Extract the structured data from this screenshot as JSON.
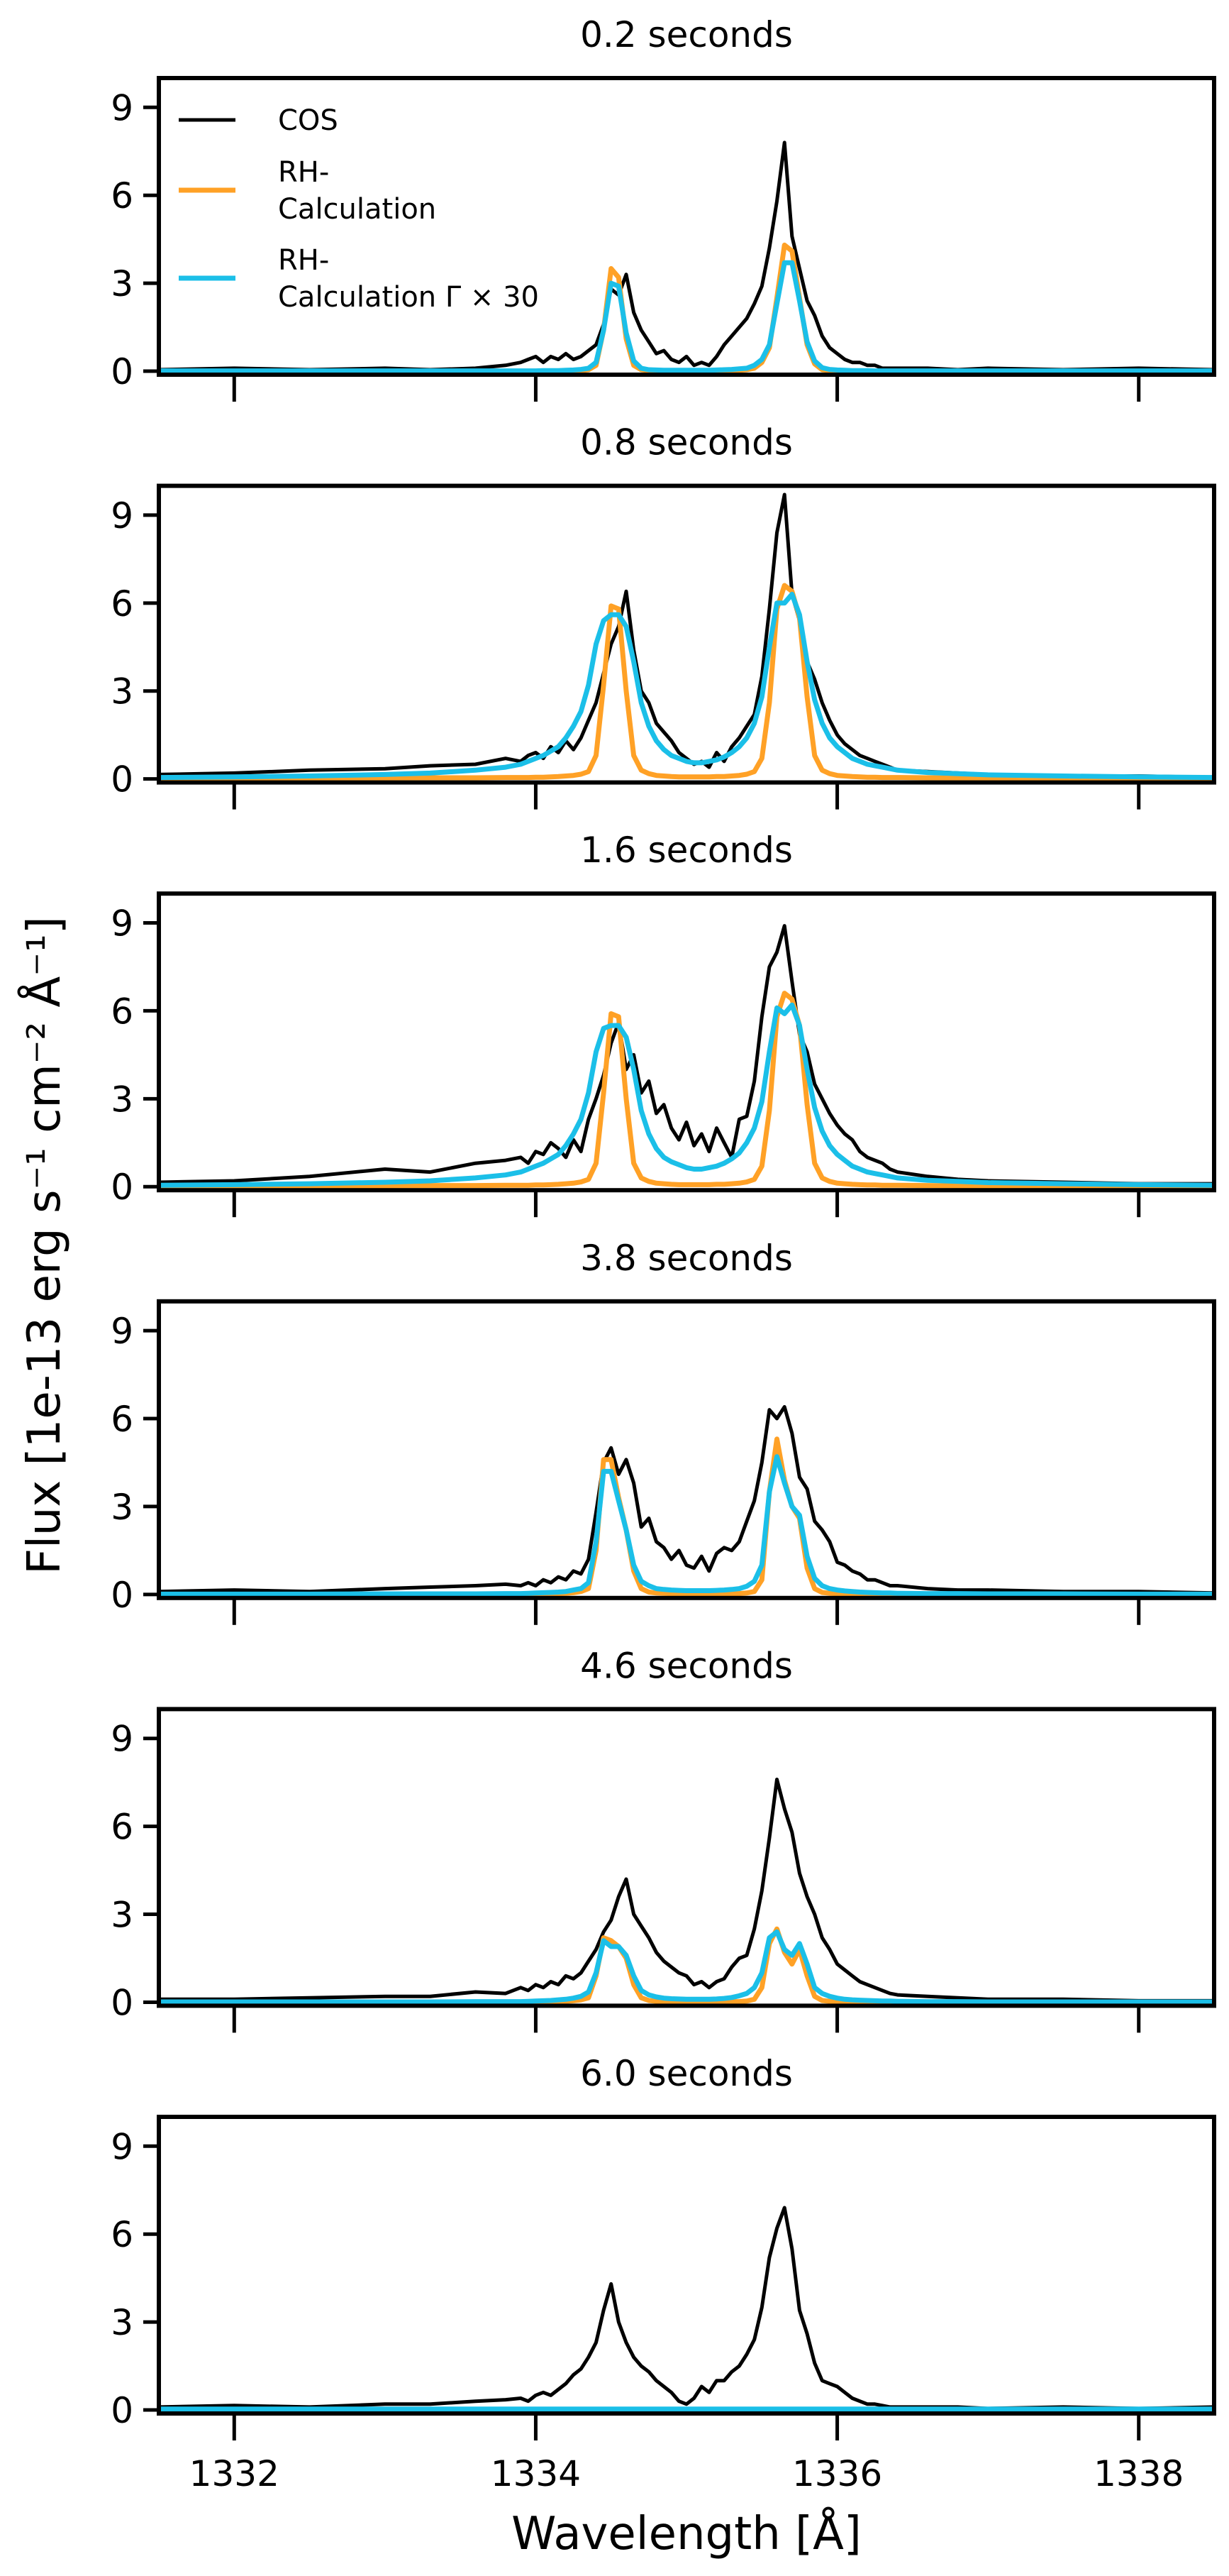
{
  "chart_data": {
    "type": "line",
    "xlabel": "Wavelength [Å]",
    "ylabel": "Flux [1e-13 erg s⁻¹ cm⁻² Å⁻¹]",
    "xlim": [
      1331.5,
      1338.5
    ],
    "ylim": [
      -0.12,
      10.0
    ],
    "xticks": [
      1332,
      1334,
      1336,
      1338
    ],
    "xtick_labels": [
      "1332",
      "1334",
      "1336",
      "1338"
    ],
    "yticks": [
      0,
      3,
      6,
      9
    ],
    "ytick_labels": [
      "0",
      "3",
      "6",
      "9"
    ],
    "grid": false,
    "legend": {
      "placement": "top-left",
      "entries": [
        {
          "key": "cos",
          "label": "COS",
          "color": "#000000"
        },
        {
          "key": "rh",
          "label": "RH-\nCalculation",
          "color": "#FFA126"
        },
        {
          "key": "rh30",
          "label": "RH-\nCalculation Γ × 30",
          "color": "#1BBFE8"
        }
      ]
    },
    "x": [
      1331.5,
      1332.0,
      1332.5,
      1333.0,
      1333.3,
      1333.6,
      1333.8,
      1333.9,
      1333.95,
      1334.0,
      1334.05,
      1334.1,
      1334.15,
      1334.2,
      1334.25,
      1334.3,
      1334.35,
      1334.4,
      1334.45,
      1334.5,
      1334.55,
      1334.6,
      1334.65,
      1334.7,
      1334.75,
      1334.8,
      1334.85,
      1334.9,
      1334.95,
      1335.0,
      1335.05,
      1335.1,
      1335.15,
      1335.2,
      1335.25,
      1335.3,
      1335.35,
      1335.4,
      1335.45,
      1335.5,
      1335.55,
      1335.6,
      1335.65,
      1335.7,
      1335.75,
      1335.8,
      1335.85,
      1335.9,
      1335.95,
      1336.0,
      1336.05,
      1336.1,
      1336.15,
      1336.2,
      1336.25,
      1336.3,
      1336.35,
      1336.4,
      1336.6,
      1336.8,
      1337.0,
      1337.5,
      1338.0,
      1338.5
    ],
    "panels": [
      {
        "title": "0.2 seconds",
        "cos": [
          0.05,
          0.1,
          0.05,
          0.1,
          0.05,
          0.1,
          0.2,
          0.3,
          0.4,
          0.5,
          0.3,
          0.5,
          0.4,
          0.6,
          0.4,
          0.5,
          0.7,
          0.9,
          1.6,
          2.8,
          2.6,
          3.3,
          2.0,
          1.4,
          1.0,
          0.6,
          0.7,
          0.4,
          0.3,
          0.5,
          0.2,
          0.3,
          0.2,
          0.5,
          0.9,
          1.2,
          1.5,
          1.8,
          2.3,
          2.9,
          4.2,
          5.8,
          7.8,
          4.6,
          3.5,
          2.4,
          1.9,
          1.2,
          0.8,
          0.6,
          0.4,
          0.3,
          0.3,
          0.2,
          0.2,
          0.1,
          0.1,
          0.1,
          0.1,
          0.05,
          0.1,
          0.05,
          0.1,
          0.05
        ],
        "rh": [
          0,
          0,
          0,
          0,
          0,
          0,
          0,
          0,
          0,
          0,
          0,
          0,
          0,
          0,
          0,
          0.02,
          0.05,
          0.2,
          1.4,
          3.5,
          3.2,
          1.1,
          0.2,
          0.05,
          0.02,
          0,
          0,
          0,
          0,
          0,
          0,
          0,
          0,
          0,
          0,
          0.02,
          0.03,
          0.05,
          0.1,
          0.3,
          0.8,
          2.5,
          4.3,
          4.1,
          2.5,
          0.9,
          0.25,
          0.05,
          0.02,
          0,
          0,
          0,
          0,
          0,
          0,
          0,
          0,
          0,
          0,
          0,
          0,
          0,
          0,
          0
        ],
        "rh30": [
          0.01,
          0.01,
          0.01,
          0.01,
          0.01,
          0.01,
          0.01,
          0.01,
          0.01,
          0.01,
          0.02,
          0.02,
          0.02,
          0.03,
          0.04,
          0.06,
          0.1,
          0.3,
          1.4,
          3.0,
          2.9,
          1.3,
          0.35,
          0.1,
          0.05,
          0.04,
          0.03,
          0.03,
          0.03,
          0.03,
          0.03,
          0.03,
          0.03,
          0.04,
          0.05,
          0.06,
          0.08,
          0.1,
          0.2,
          0.4,
          0.9,
          2.3,
          3.7,
          3.7,
          2.4,
          1.0,
          0.35,
          0.12,
          0.06,
          0.04,
          0.03,
          0.02,
          0.02,
          0.02,
          0.01,
          0.01,
          0.01,
          0.01,
          0.01,
          0.01,
          0.01,
          0.01,
          0.01,
          0.01
        ]
      },
      {
        "title": "0.8 seconds",
        "cos": [
          0.15,
          0.2,
          0.3,
          0.35,
          0.45,
          0.5,
          0.7,
          0.6,
          0.8,
          0.9,
          0.7,
          1.1,
          0.9,
          1.3,
          1.0,
          1.4,
          2.0,
          2.6,
          3.6,
          4.6,
          5.2,
          6.4,
          4.4,
          3.0,
          2.6,
          1.9,
          1.6,
          1.3,
          0.9,
          0.7,
          0.5,
          0.6,
          0.4,
          0.9,
          0.6,
          1.1,
          1.4,
          1.8,
          2.2,
          3.5,
          5.8,
          8.4,
          9.7,
          6.3,
          5.4,
          4.0,
          3.4,
          2.6,
          2.0,
          1.5,
          1.2,
          1.0,
          0.8,
          0.7,
          0.6,
          0.5,
          0.4,
          0.3,
          0.25,
          0.2,
          0.15,
          0.1,
          0.1,
          0.05
        ],
        "rh": [
          0.02,
          0.02,
          0.03,
          0.03,
          0.04,
          0.04,
          0.05,
          0.05,
          0.05,
          0.06,
          0.06,
          0.07,
          0.08,
          0.1,
          0.12,
          0.16,
          0.25,
          0.8,
          3.2,
          5.9,
          5.8,
          3.0,
          0.8,
          0.3,
          0.18,
          0.12,
          0.1,
          0.08,
          0.07,
          0.07,
          0.07,
          0.07,
          0.07,
          0.08,
          0.08,
          0.1,
          0.12,
          0.16,
          0.25,
          0.7,
          2.6,
          5.8,
          6.6,
          6.4,
          5.5,
          2.8,
          0.8,
          0.3,
          0.18,
          0.12,
          0.1,
          0.08,
          0.07,
          0.06,
          0.06,
          0.05,
          0.05,
          0.05,
          0.04,
          0.03,
          0.03,
          0.02,
          0.02,
          0.02
        ],
        "rh30": [
          0.05,
          0.07,
          0.1,
          0.15,
          0.2,
          0.3,
          0.4,
          0.5,
          0.6,
          0.7,
          0.8,
          0.95,
          1.1,
          1.4,
          1.8,
          2.3,
          3.2,
          4.6,
          5.4,
          5.6,
          5.6,
          5.2,
          4.0,
          2.6,
          1.8,
          1.3,
          1.0,
          0.8,
          0.7,
          0.6,
          0.55,
          0.55,
          0.6,
          0.65,
          0.75,
          0.9,
          1.1,
          1.4,
          1.9,
          2.8,
          4.5,
          6.0,
          6.0,
          6.3,
          5.6,
          4.0,
          2.7,
          1.9,
          1.4,
          1.1,
          0.9,
          0.7,
          0.6,
          0.5,
          0.45,
          0.4,
          0.35,
          0.3,
          0.22,
          0.18,
          0.14,
          0.1,
          0.07,
          0.05
        ]
      },
      {
        "title": "1.6 seconds",
        "cos": [
          0.15,
          0.2,
          0.35,
          0.6,
          0.5,
          0.8,
          0.9,
          1.0,
          0.8,
          1.2,
          1.1,
          1.5,
          1.3,
          1.0,
          1.6,
          1.2,
          2.3,
          3.0,
          3.8,
          4.9,
          5.6,
          4.0,
          4.5,
          3.2,
          3.6,
          2.5,
          2.8,
          2.0,
          1.6,
          2.2,
          1.4,
          1.8,
          1.2,
          2.0,
          1.5,
          1.0,
          2.3,
          2.4,
          3.6,
          5.8,
          7.5,
          8.0,
          8.9,
          7.0,
          5.2,
          4.6,
          3.5,
          3.0,
          2.5,
          2.1,
          1.8,
          1.6,
          1.2,
          1.0,
          0.9,
          0.8,
          0.6,
          0.5,
          0.35,
          0.25,
          0.2,
          0.15,
          0.1,
          0.1
        ],
        "rh": [
          0.02,
          0.02,
          0.03,
          0.03,
          0.04,
          0.04,
          0.05,
          0.05,
          0.05,
          0.06,
          0.06,
          0.07,
          0.08,
          0.1,
          0.12,
          0.16,
          0.25,
          0.8,
          3.2,
          5.9,
          5.8,
          3.0,
          0.8,
          0.3,
          0.18,
          0.12,
          0.1,
          0.08,
          0.07,
          0.07,
          0.07,
          0.07,
          0.07,
          0.08,
          0.08,
          0.1,
          0.12,
          0.16,
          0.25,
          0.7,
          2.6,
          5.8,
          6.6,
          6.4,
          5.5,
          2.8,
          0.8,
          0.3,
          0.18,
          0.12,
          0.1,
          0.08,
          0.07,
          0.06,
          0.06,
          0.05,
          0.05,
          0.05,
          0.04,
          0.03,
          0.03,
          0.02,
          0.02,
          0.02
        ],
        "rh30": [
          0.05,
          0.07,
          0.1,
          0.15,
          0.2,
          0.3,
          0.4,
          0.5,
          0.6,
          0.7,
          0.8,
          0.95,
          1.1,
          1.4,
          1.8,
          2.3,
          3.2,
          4.6,
          5.4,
          5.5,
          5.5,
          5.1,
          4.0,
          2.6,
          1.8,
          1.3,
          1.0,
          0.85,
          0.75,
          0.65,
          0.6,
          0.6,
          0.65,
          0.7,
          0.8,
          0.95,
          1.15,
          1.5,
          2.0,
          2.9,
          4.6,
          6.1,
          5.9,
          6.2,
          5.5,
          4.0,
          2.7,
          1.9,
          1.4,
          1.1,
          0.9,
          0.7,
          0.6,
          0.5,
          0.45,
          0.4,
          0.35,
          0.3,
          0.22,
          0.18,
          0.14,
          0.1,
          0.07,
          0.05
        ]
      },
      {
        "title": "3.8 seconds",
        "cos": [
          0.1,
          0.15,
          0.1,
          0.2,
          0.25,
          0.3,
          0.35,
          0.3,
          0.4,
          0.3,
          0.5,
          0.4,
          0.6,
          0.5,
          0.8,
          0.7,
          1.2,
          2.8,
          4.5,
          5.0,
          4.1,
          4.6,
          3.8,
          2.3,
          2.6,
          1.8,
          1.6,
          1.2,
          1.5,
          1.0,
          0.9,
          1.3,
          0.8,
          1.4,
          1.6,
          1.5,
          1.8,
          2.5,
          3.2,
          4.5,
          6.3,
          6.0,
          6.4,
          5.5,
          4.0,
          3.6,
          2.5,
          2.2,
          1.8,
          1.1,
          1.0,
          0.8,
          0.7,
          0.5,
          0.5,
          0.4,
          0.3,
          0.3,
          0.2,
          0.15,
          0.15,
          0.1,
          0.1,
          0.05
        ],
        "rh": [
          0,
          0,
          0,
          0,
          0.01,
          0.01,
          0.01,
          0.01,
          0.01,
          0.01,
          0.02,
          0.02,
          0.03,
          0.04,
          0.06,
          0.1,
          0.2,
          1.5,
          4.6,
          4.6,
          3.3,
          2.2,
          0.8,
          0.2,
          0.08,
          0.05,
          0.04,
          0.03,
          0.03,
          0.03,
          0.03,
          0.03,
          0.03,
          0.03,
          0.03,
          0.03,
          0.03,
          0.05,
          0.1,
          0.5,
          3.5,
          5.3,
          3.9,
          3.0,
          2.6,
          0.9,
          0.2,
          0.07,
          0.04,
          0.03,
          0.02,
          0.02,
          0.01,
          0.01,
          0.01,
          0.01,
          0.01,
          0.01,
          0,
          0,
          0,
          0,
          0,
          0
        ],
        "rh30": [
          0.01,
          0.01,
          0.01,
          0.02,
          0.02,
          0.02,
          0.03,
          0.03,
          0.04,
          0.05,
          0.06,
          0.07,
          0.08,
          0.1,
          0.15,
          0.2,
          0.4,
          1.8,
          4.2,
          4.2,
          3.2,
          2.2,
          1.0,
          0.45,
          0.3,
          0.2,
          0.17,
          0.15,
          0.14,
          0.13,
          0.13,
          0.13,
          0.13,
          0.14,
          0.15,
          0.17,
          0.2,
          0.28,
          0.45,
          1.0,
          3.5,
          4.7,
          3.8,
          3.0,
          2.7,
          1.3,
          0.55,
          0.3,
          0.2,
          0.15,
          0.12,
          0.1,
          0.08,
          0.07,
          0.06,
          0.05,
          0.05,
          0.04,
          0.03,
          0.03,
          0.02,
          0.02,
          0.01,
          0.01
        ]
      },
      {
        "title": "4.6 seconds",
        "cos": [
          0.1,
          0.1,
          0.15,
          0.2,
          0.2,
          0.35,
          0.3,
          0.5,
          0.4,
          0.6,
          0.5,
          0.7,
          0.6,
          0.9,
          0.8,
          1.0,
          1.4,
          1.8,
          2.4,
          2.8,
          3.6,
          4.2,
          3.0,
          2.6,
          2.2,
          1.7,
          1.4,
          1.2,
          1.0,
          0.9,
          0.6,
          0.7,
          0.5,
          0.7,
          0.8,
          1.2,
          1.5,
          1.6,
          2.5,
          3.8,
          5.6,
          7.6,
          6.6,
          5.8,
          4.4,
          3.6,
          3.0,
          2.2,
          1.8,
          1.3,
          1.1,
          0.9,
          0.7,
          0.6,
          0.5,
          0.4,
          0.3,
          0.25,
          0.2,
          0.15,
          0.1,
          0.1,
          0.05,
          0.05
        ],
        "rh": [
          0,
          0,
          0,
          0,
          0,
          0,
          0,
          0,
          0,
          0.01,
          0.01,
          0.02,
          0.02,
          0.03,
          0.05,
          0.08,
          0.15,
          0.9,
          2.2,
          2.1,
          1.9,
          1.5,
          0.6,
          0.15,
          0.06,
          0.03,
          0.02,
          0.02,
          0.02,
          0.02,
          0.02,
          0.02,
          0.02,
          0.02,
          0.02,
          0.02,
          0.02,
          0.04,
          0.1,
          0.5,
          2.0,
          2.5,
          1.7,
          1.3,
          1.8,
          0.9,
          0.2,
          0.06,
          0.03,
          0.02,
          0.01,
          0.01,
          0,
          0,
          0,
          0,
          0,
          0,
          0,
          0,
          0,
          0,
          0,
          0
        ],
        "rh30": [
          0.01,
          0.01,
          0.01,
          0.01,
          0.01,
          0.02,
          0.02,
          0.02,
          0.03,
          0.04,
          0.05,
          0.06,
          0.08,
          0.1,
          0.14,
          0.2,
          0.35,
          1.0,
          2.1,
          1.9,
          1.9,
          1.6,
          0.9,
          0.4,
          0.25,
          0.18,
          0.14,
          0.12,
          0.11,
          0.1,
          0.1,
          0.1,
          0.1,
          0.11,
          0.13,
          0.16,
          0.22,
          0.3,
          0.5,
          1.0,
          2.2,
          2.4,
          1.8,
          1.6,
          2.0,
          1.3,
          0.5,
          0.3,
          0.2,
          0.14,
          0.1,
          0.08,
          0.07,
          0.06,
          0.05,
          0.04,
          0.04,
          0.03,
          0.02,
          0.02,
          0.01,
          0.01,
          0.01,
          0.01
        ]
      },
      {
        "title": "6.0 seconds",
        "cos": [
          0.1,
          0.15,
          0.1,
          0.2,
          0.2,
          0.3,
          0.35,
          0.4,
          0.3,
          0.5,
          0.6,
          0.5,
          0.7,
          0.9,
          1.2,
          1.4,
          1.8,
          2.3,
          3.4,
          4.3,
          3.0,
          2.3,
          1.8,
          1.5,
          1.3,
          1.0,
          0.8,
          0.6,
          0.3,
          0.2,
          0.4,
          0.8,
          0.6,
          1.0,
          1.0,
          1.3,
          1.5,
          1.9,
          2.4,
          3.5,
          5.2,
          6.2,
          6.9,
          5.5,
          3.4,
          2.6,
          1.6,
          1.0,
          0.9,
          0.8,
          0.6,
          0.4,
          0.3,
          0.2,
          0.2,
          0.15,
          0.1,
          0.1,
          0.1,
          0.1,
          0.05,
          0.1,
          0.05,
          0.1
        ],
        "rh": 0.02,
        "rh30": 0.03
      }
    ]
  }
}
